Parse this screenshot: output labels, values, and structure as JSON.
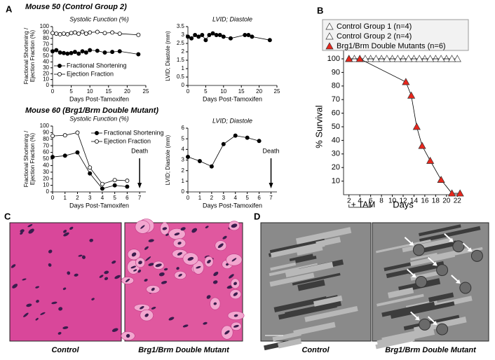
{
  "panel_labels": [
    "A",
    "B",
    "C",
    "D"
  ],
  "headings": [
    "Mouse 50 (Control Group 2)",
    "Mouse 60 (Brg1/Brm Double Mutant)"
  ],
  "captions": {
    "c": [
      "Control",
      "Brg1/Brm Double Mutant"
    ],
    "d": [
      "Control",
      "Brg1/Brm Double Mutant"
    ]
  },
  "chart_data": [
    {
      "type": "line",
      "title": "Systolic Function (%)",
      "xlabel": "Days Post-Tamoxifen",
      "ylabel": [
        "Fractional Shortening /",
        "Ejection Fraction (%)"
      ],
      "x": [
        0,
        1,
        2,
        3,
        4,
        5,
        6,
        7,
        8,
        9,
        10,
        12,
        14,
        16,
        18,
        23
      ],
      "series": [
        {
          "name": "Fractional Shortening",
          "color": "#000000",
          "values": [
            58,
            60,
            56,
            55,
            54,
            55,
            57,
            54,
            58,
            56,
            60,
            59,
            56,
            57,
            58,
            53
          ]
        },
        {
          "name": "Ejection Fraction",
          "color": "#ffffff",
          "values": [
            89,
            88,
            87,
            88,
            87,
            89,
            90,
            88,
            91,
            88,
            90,
            91,
            89,
            90,
            88,
            86
          ]
        }
      ],
      "xlim": [
        0,
        25
      ],
      "xticks": [
        0,
        5,
        10,
        15,
        20,
        25
      ],
      "ylim": [
        0,
        100
      ],
      "yticks": [
        0,
        10,
        20,
        30,
        40,
        50,
        60,
        70,
        80,
        90,
        100
      ],
      "legend": "lower left"
    },
    {
      "type": "line",
      "title": "LVID; Diastole",
      "xlabel": "Days Post-Tamoxifen",
      "ylabel": [
        "LVID; Diastole (mm)"
      ],
      "x": [
        0,
        1,
        2,
        3,
        4,
        5,
        6,
        7,
        8,
        9,
        10,
        12,
        16,
        17,
        18,
        23
      ],
      "series": [
        {
          "color": "#000000",
          "values": [
            2.9,
            2.8,
            3.0,
            2.9,
            3.0,
            2.7,
            3.0,
            3.1,
            3.0,
            3.0,
            2.9,
            2.8,
            3.0,
            3.0,
            2.9,
            2.7
          ]
        }
      ],
      "xlim": [
        0,
        25
      ],
      "xticks": [
        0,
        5,
        10,
        15,
        20,
        25
      ],
      "ylim": [
        0,
        3.5
      ],
      "yticks": [
        0,
        0.5,
        1,
        1.5,
        2,
        2.5,
        3,
        3.5
      ]
    },
    {
      "type": "line",
      "title": "Systolic Function (%)",
      "xlabel": "Days Post-Tamoxifen",
      "ylabel": [
        "Fractional Shortening /",
        "Ejection Fraction (%)"
      ],
      "x": [
        0,
        1,
        2,
        3,
        4,
        5,
        6
      ],
      "series": [
        {
          "name": "Fractional Shortening",
          "color": "#000000",
          "values": [
            53,
            55,
            60,
            28,
            5,
            10,
            8
          ]
        },
        {
          "name": "Ejection Fraction",
          "color": "#ffffff",
          "values": [
            85,
            86,
            90,
            37,
            12,
            18,
            17
          ]
        }
      ],
      "xlim": [
        0,
        7.5
      ],
      "xticks": [
        0,
        1,
        2,
        3,
        4,
        5,
        6,
        7
      ],
      "ylim": [
        0,
        100
      ],
      "yticks": [
        0,
        10,
        20,
        30,
        40,
        50,
        60,
        70,
        80,
        90,
        100
      ],
      "legend": "upper right",
      "annotations": [
        {
          "text": "Death",
          "x": 7
        }
      ]
    },
    {
      "type": "line",
      "title": "LVID; Diastole",
      "xlabel": "Days Post-Tamoxifen",
      "ylabel": [
        "LVID; Diastole (mm)"
      ],
      "x": [
        0,
        1,
        2,
        3,
        4,
        5,
        6
      ],
      "series": [
        {
          "color": "#000000",
          "values": [
            3.3,
            2.9,
            2.4,
            4.5,
            5.3,
            5.1,
            4.8
          ]
        }
      ],
      "xlim": [
        0,
        7.5
      ],
      "xticks": [
        0,
        1,
        2,
        3,
        4,
        5,
        6,
        7
      ],
      "ylim": [
        0,
        6
      ],
      "yticks": [
        0,
        1,
        2,
        3,
        4,
        5,
        6
      ],
      "annotations": [
        {
          "text": "Death",
          "x": 7
        }
      ]
    },
    {
      "type": "survival",
      "xlabel": "Days",
      "ylabel": [
        "% Survival"
      ],
      "bracket_label": "+ TAM",
      "series": [
        {
          "name": "Control Group 1 (n=4)",
          "color": "#ffffff",
          "x": [
            2,
            4,
            6,
            8,
            10,
            12,
            14,
            16,
            18,
            20,
            22
          ],
          "values": [
            100,
            100,
            100,
            100,
            100,
            100,
            100,
            100,
            100,
            100,
            100
          ]
        },
        {
          "name": "Control Group 2 (n=4)",
          "color": "#ffffff",
          "x": [
            3,
            5,
            7,
            9,
            11,
            13,
            15,
            17,
            19,
            21
          ],
          "values": [
            100,
            100,
            100,
            100,
            100,
            100,
            100,
            100,
            100,
            100
          ]
        },
        {
          "name": "Brg1/Brm Double Mutants (n=6)",
          "color": "#e8261c",
          "x": [
            2,
            4,
            12.5,
            13.5,
            14.5,
            15.5,
            17,
            19,
            21,
            22.5
          ],
          "values": [
            100,
            100,
            83,
            73,
            50,
            36,
            25,
            11,
            1,
            1
          ]
        }
      ],
      "xlim": [
        1,
        23
      ],
      "xticks": [
        2,
        4,
        6,
        8,
        10,
        12,
        14,
        16,
        18,
        20,
        22
      ],
      "ylim": [
        0,
        105
      ],
      "yticks": [
        10,
        20,
        30,
        40,
        50,
        60,
        70,
        80,
        90,
        100
      ],
      "legend": "top"
    }
  ]
}
